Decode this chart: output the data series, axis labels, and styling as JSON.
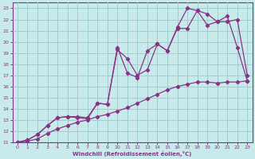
{
  "xlabel": "Windchill (Refroidissement éolien,°C)",
  "xlim": [
    -0.5,
    23.5
  ],
  "ylim": [
    11,
    23.5
  ],
  "xticks": [
    0,
    1,
    2,
    3,
    4,
    5,
    6,
    7,
    8,
    9,
    10,
    11,
    12,
    13,
    14,
    15,
    16,
    17,
    18,
    19,
    20,
    21,
    22,
    23
  ],
  "yticks": [
    11,
    12,
    13,
    14,
    15,
    16,
    17,
    18,
    19,
    20,
    21,
    22,
    23
  ],
  "bg_color": "#c8eaea",
  "grid_color": "#9ecece",
  "line_color": "#883388",
  "line1_x": [
    0,
    1,
    2,
    3,
    4,
    5,
    6,
    7,
    8,
    9,
    10,
    11,
    12,
    13,
    14,
    15,
    16,
    17,
    18,
    19,
    20,
    21,
    22,
    23
  ],
  "line1_y": [
    11,
    11.1,
    11.3,
    11.8,
    12.2,
    12.5,
    12.8,
    13.0,
    13.3,
    13.5,
    13.8,
    14.1,
    14.5,
    14.9,
    15.3,
    15.7,
    16.0,
    16.2,
    16.4,
    16.4,
    16.3,
    16.4,
    16.4,
    16.5
  ],
  "line2_x": [
    0,
    1,
    2,
    3,
    4,
    5,
    6,
    7,
    8,
    9,
    10,
    11,
    12,
    13,
    14,
    15,
    16,
    17,
    18,
    19,
    20,
    21,
    22,
    23
  ],
  "line2_y": [
    11,
    11.2,
    11.7,
    12.5,
    13.2,
    13.3,
    13.3,
    13.2,
    14.5,
    14.4,
    19.3,
    18.5,
    17.0,
    17.5,
    19.8,
    19.2,
    21.2,
    21.2,
    22.8,
    22.5,
    21.8,
    22.3,
    19.5,
    16.5
  ],
  "line3_x": [
    0,
    1,
    2,
    3,
    4,
    5,
    6,
    7,
    8,
    9,
    10,
    11,
    12,
    13,
    14,
    15,
    16,
    17,
    18,
    19,
    20,
    21,
    22,
    23
  ],
  "line3_y": [
    11,
    11.2,
    11.7,
    12.5,
    13.2,
    13.3,
    13.2,
    13.1,
    14.5,
    14.4,
    19.5,
    17.2,
    16.8,
    19.2,
    19.8,
    19.2,
    21.3,
    23.0,
    22.8,
    21.5,
    21.8,
    21.8,
    22.0,
    17.0
  ]
}
